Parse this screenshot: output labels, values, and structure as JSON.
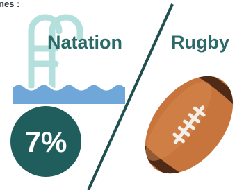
{
  "header": {
    "title": "nes :"
  },
  "items": [
    {
      "label": "Natation",
      "value": "7%"
    },
    {
      "label": "Rugby"
    }
  ]
}
